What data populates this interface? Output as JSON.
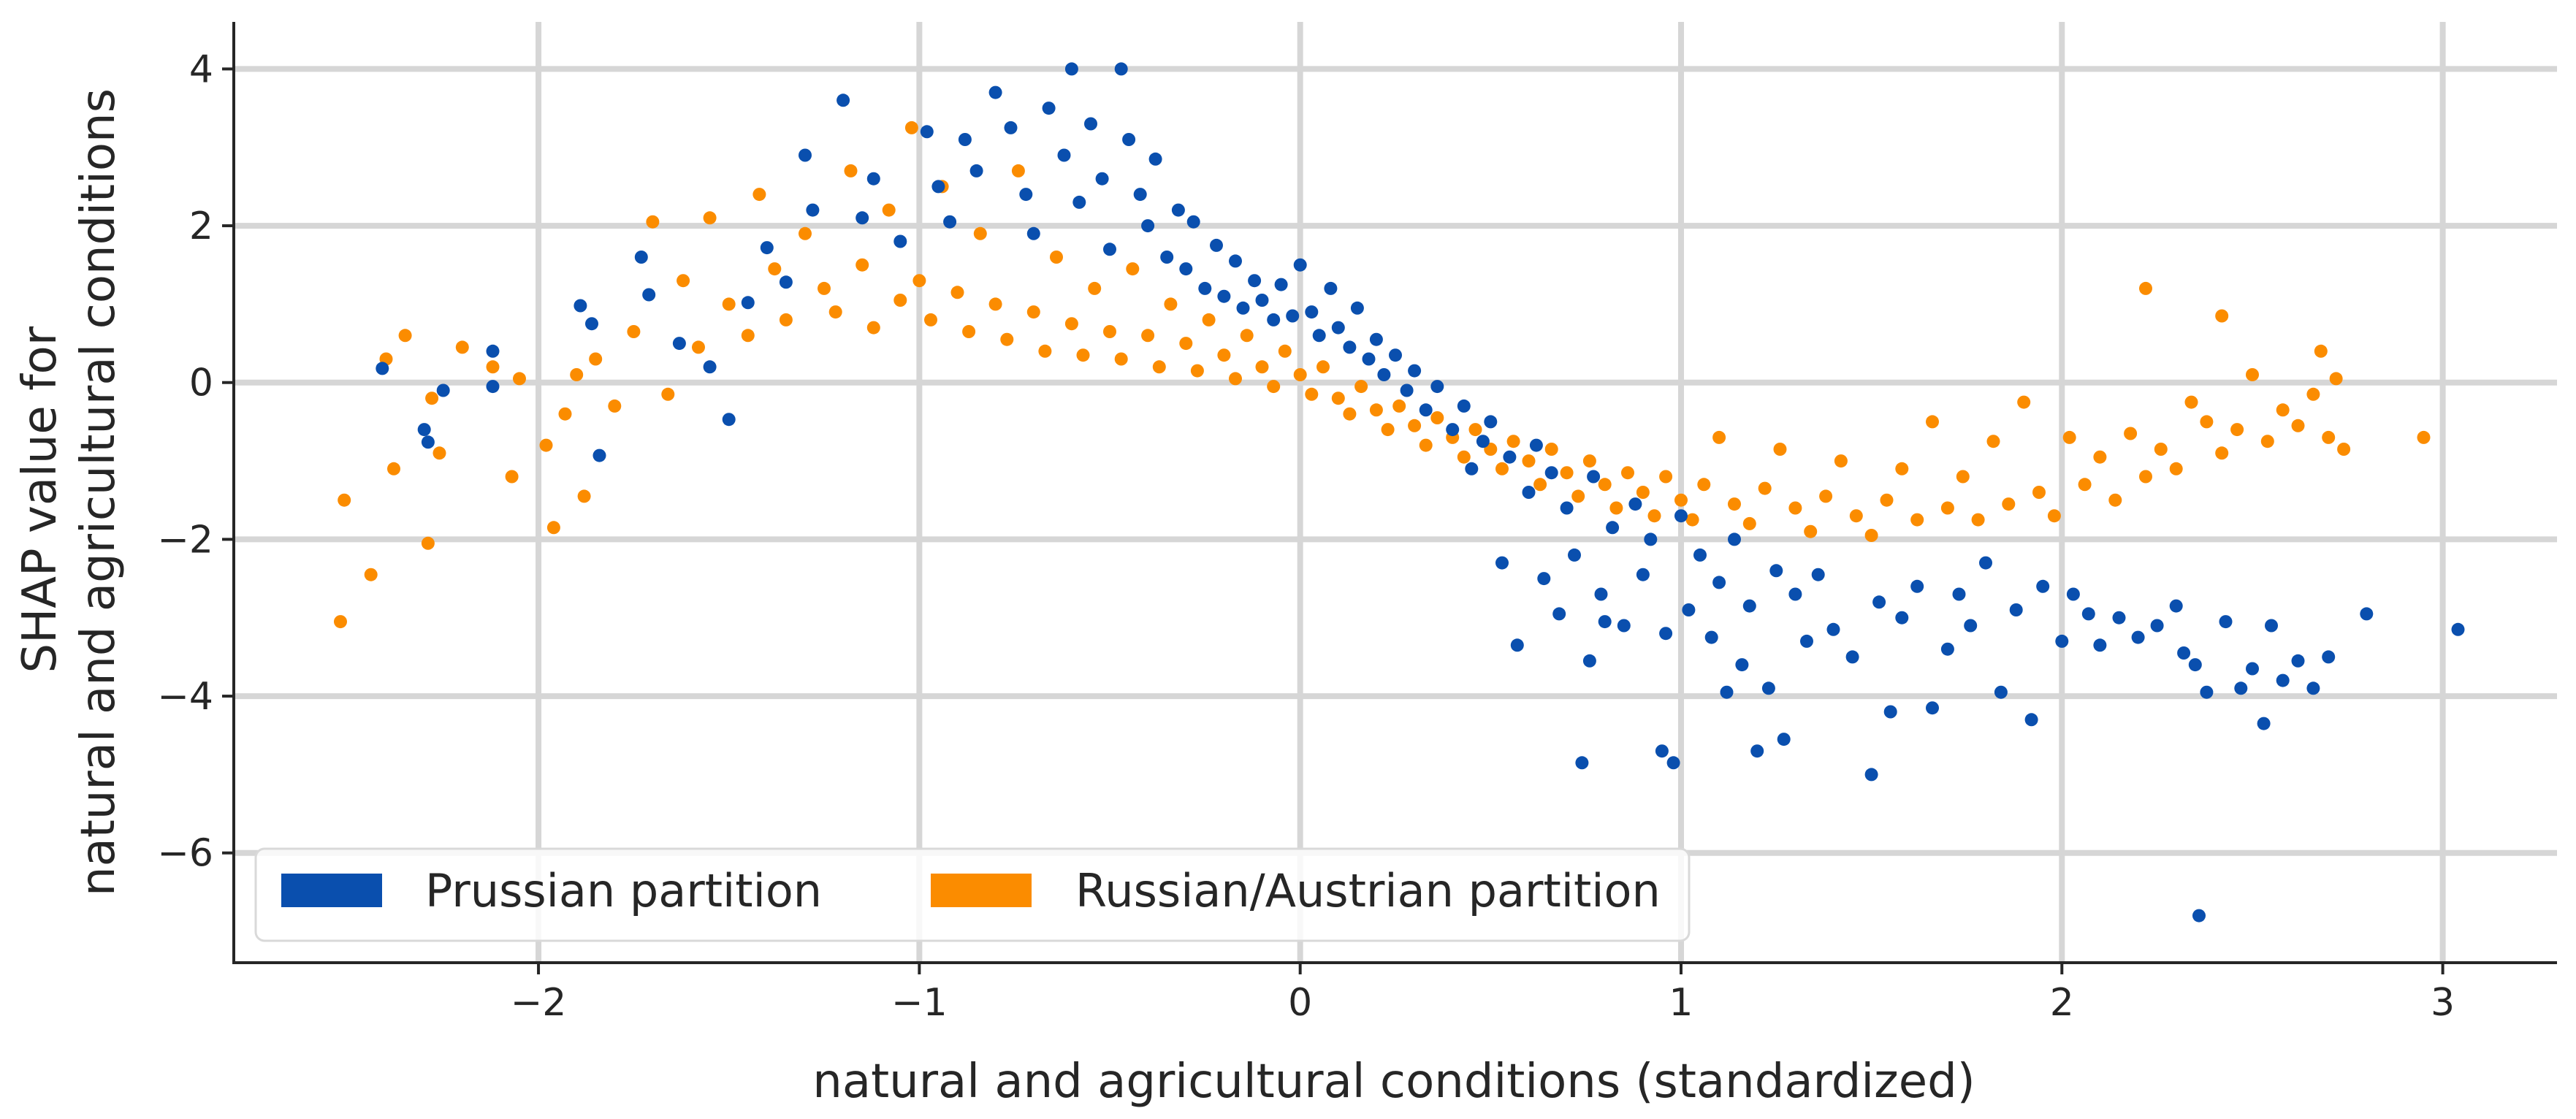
{
  "chart_data": {
    "type": "scatter",
    "title": "",
    "xlabel": "natural and agricultural conditions (standardized)",
    "ylabel_lines": [
      "SHAP value for",
      "natural and agricultural conditions"
    ],
    "xlim": [
      -2.8,
      3.3
    ],
    "ylim": [
      -7.4,
      4.6
    ],
    "xticks": [
      -2,
      -1,
      0,
      1,
      2,
      3
    ],
    "yticks": [
      -6,
      -4,
      -2,
      0,
      2,
      4
    ],
    "xtick_labels": [
      "−2",
      "−1",
      "0",
      "1",
      "2",
      "3"
    ],
    "ytick_labels": [
      "−6",
      "−4",
      "−2",
      "0",
      "2",
      "4"
    ],
    "grid": true,
    "legend_position": "bottom-left",
    "series": [
      {
        "name": "Prussian partition",
        "color": "#0a4fae",
        "points": [
          [
            -2.41,
            0.18
          ],
          [
            -2.3,
            -0.6
          ],
          [
            -2.29,
            -0.76
          ],
          [
            -2.25,
            -0.1
          ],
          [
            -2.12,
            0.4
          ],
          [
            -2.12,
            -0.05
          ],
          [
            -1.89,
            0.98
          ],
          [
            -1.86,
            0.75
          ],
          [
            -1.84,
            -0.93
          ],
          [
            -1.73,
            1.6
          ],
          [
            -1.71,
            1.12
          ],
          [
            -1.63,
            0.5
          ],
          [
            -1.55,
            0.2
          ],
          [
            -1.5,
            -0.47
          ],
          [
            -1.45,
            1.02
          ],
          [
            -1.4,
            1.72
          ],
          [
            -1.35,
            1.28
          ],
          [
            -1.3,
            2.9
          ],
          [
            -1.28,
            2.2
          ],
          [
            -1.2,
            3.6
          ],
          [
            -1.15,
            2.1
          ],
          [
            -1.12,
            2.6
          ],
          [
            -1.05,
            1.8
          ],
          [
            -0.98,
            3.2
          ],
          [
            -0.95,
            2.5
          ],
          [
            -0.92,
            2.05
          ],
          [
            -0.88,
            3.1
          ],
          [
            -0.85,
            2.7
          ],
          [
            -0.8,
            3.7
          ],
          [
            -0.76,
            3.25
          ],
          [
            -0.72,
            2.4
          ],
          [
            -0.7,
            1.9
          ],
          [
            -0.66,
            3.5
          ],
          [
            -0.62,
            2.9
          ],
          [
            -0.6,
            4.0
          ],
          [
            -0.58,
            2.3
          ],
          [
            -0.55,
            3.3
          ],
          [
            -0.52,
            2.6
          ],
          [
            -0.5,
            1.7
          ],
          [
            -0.47,
            4.0
          ],
          [
            -0.45,
            3.1
          ],
          [
            -0.42,
            2.4
          ],
          [
            -0.4,
            2.0
          ],
          [
            -0.38,
            2.85
          ],
          [
            -0.35,
            1.6
          ],
          [
            -0.32,
            2.2
          ],
          [
            -0.3,
            1.45
          ],
          [
            -0.28,
            2.05
          ],
          [
            -0.25,
            1.2
          ],
          [
            -0.22,
            1.75
          ],
          [
            -0.2,
            1.1
          ],
          [
            -0.17,
            1.55
          ],
          [
            -0.15,
            0.95
          ],
          [
            -0.12,
            1.3
          ],
          [
            -0.1,
            1.05
          ],
          [
            -0.07,
            0.8
          ],
          [
            -0.05,
            1.25
          ],
          [
            -0.02,
            0.85
          ],
          [
            0.0,
            1.5
          ],
          [
            0.03,
            0.9
          ],
          [
            0.05,
            0.6
          ],
          [
            0.08,
            1.2
          ],
          [
            0.1,
            0.7
          ],
          [
            0.13,
            0.45
          ],
          [
            0.15,
            0.95
          ],
          [
            0.18,
            0.3
          ],
          [
            0.2,
            0.55
          ],
          [
            0.22,
            0.1
          ],
          [
            0.25,
            0.35
          ],
          [
            0.28,
            -0.1
          ],
          [
            0.3,
            0.15
          ],
          [
            0.33,
            -0.35
          ],
          [
            0.36,
            -0.05
          ],
          [
            0.4,
            -0.6
          ],
          [
            0.43,
            -0.3
          ],
          [
            0.45,
            -1.1
          ],
          [
            0.48,
            -0.75
          ],
          [
            0.5,
            -0.5
          ],
          [
            0.53,
            -2.3
          ],
          [
            0.55,
            -0.95
          ],
          [
            0.57,
            -3.35
          ],
          [
            0.6,
            -1.4
          ],
          [
            0.62,
            -0.8
          ],
          [
            0.64,
            -2.5
          ],
          [
            0.66,
            -1.15
          ],
          [
            0.68,
            -2.95
          ],
          [
            0.7,
            -1.6
          ],
          [
            0.72,
            -2.2
          ],
          [
            0.74,
            -4.85
          ],
          [
            0.76,
            -3.55
          ],
          [
            0.77,
            -1.2
          ],
          [
            0.79,
            -2.7
          ],
          [
            0.8,
            -3.05
          ],
          [
            0.82,
            -1.85
          ],
          [
            0.85,
            -3.1
          ],
          [
            0.88,
            -1.55
          ],
          [
            0.9,
            -2.45
          ],
          [
            0.92,
            -2.0
          ],
          [
            0.95,
            -4.7
          ],
          [
            0.96,
            -3.2
          ],
          [
            0.98,
            -4.85
          ],
          [
            1.0,
            -1.7
          ],
          [
            1.02,
            -2.9
          ],
          [
            1.05,
            -2.2
          ],
          [
            1.08,
            -3.25
          ],
          [
            1.1,
            -2.55
          ],
          [
            1.12,
            -3.95
          ],
          [
            1.14,
            -2.0
          ],
          [
            1.16,
            -3.6
          ],
          [
            1.18,
            -2.85
          ],
          [
            1.2,
            -4.7
          ],
          [
            1.23,
            -3.9
          ],
          [
            1.25,
            -2.4
          ],
          [
            1.27,
            -4.55
          ],
          [
            1.3,
            -2.7
          ],
          [
            1.33,
            -3.3
          ],
          [
            1.36,
            -2.45
          ],
          [
            1.4,
            -3.15
          ],
          [
            1.45,
            -3.5
          ],
          [
            1.5,
            -5.0
          ],
          [
            1.52,
            -2.8
          ],
          [
            1.55,
            -4.2
          ],
          [
            1.58,
            -3.0
          ],
          [
            1.62,
            -2.6
          ],
          [
            1.66,
            -4.15
          ],
          [
            1.7,
            -3.4
          ],
          [
            1.73,
            -2.7
          ],
          [
            1.76,
            -3.1
          ],
          [
            1.8,
            -2.3
          ],
          [
            1.84,
            -3.95
          ],
          [
            1.88,
            -2.9
          ],
          [
            1.92,
            -4.3
          ],
          [
            1.95,
            -2.6
          ],
          [
            2.0,
            -3.3
          ],
          [
            2.03,
            -2.7
          ],
          [
            2.07,
            -2.95
          ],
          [
            2.1,
            -3.35
          ],
          [
            2.15,
            -3.0
          ],
          [
            2.2,
            -3.25
          ],
          [
            2.25,
            -3.1
          ],
          [
            2.3,
            -2.85
          ],
          [
            2.32,
            -3.45
          ],
          [
            2.35,
            -3.6
          ],
          [
            2.38,
            -3.95
          ],
          [
            2.36,
            -6.8
          ],
          [
            2.43,
            -3.05
          ],
          [
            2.47,
            -3.9
          ],
          [
            2.5,
            -3.65
          ],
          [
            2.53,
            -4.35
          ],
          [
            2.55,
            -3.1
          ],
          [
            2.58,
            -3.8
          ],
          [
            2.62,
            -3.55
          ],
          [
            2.66,
            -3.9
          ],
          [
            2.7,
            -3.5
          ],
          [
            2.8,
            -2.95
          ],
          [
            3.04,
            -3.15
          ]
        ]
      },
      {
        "name": "Russian/Austrian partition",
        "color": "#fb8c00",
        "points": [
          [
            -2.52,
            -3.05
          ],
          [
            -2.51,
            -1.5
          ],
          [
            -2.44,
            -2.45
          ],
          [
            -2.4,
            0.3
          ],
          [
            -2.38,
            -1.1
          ],
          [
            -2.35,
            0.6
          ],
          [
            -2.29,
            -2.05
          ],
          [
            -2.28,
            -0.2
          ],
          [
            -2.26,
            -0.9
          ],
          [
            -2.2,
            0.45
          ],
          [
            -2.12,
            0.2
          ],
          [
            -2.07,
            -1.2
          ],
          [
            -2.05,
            0.05
          ],
          [
            -1.98,
            -0.8
          ],
          [
            -1.96,
            -1.85
          ],
          [
            -1.93,
            -0.4
          ],
          [
            -1.9,
            0.1
          ],
          [
            -1.88,
            -1.45
          ],
          [
            -1.85,
            0.3
          ],
          [
            -1.8,
            -0.3
          ],
          [
            -1.75,
            0.65
          ],
          [
            -1.7,
            2.05
          ],
          [
            -1.66,
            -0.15
          ],
          [
            -1.62,
            1.3
          ],
          [
            -1.58,
            0.45
          ],
          [
            -1.55,
            2.1
          ],
          [
            -1.5,
            1.0
          ],
          [
            -1.45,
            0.6
          ],
          [
            -1.42,
            2.4
          ],
          [
            -1.38,
            1.45
          ],
          [
            -1.35,
            0.8
          ],
          [
            -1.3,
            1.9
          ],
          [
            -1.25,
            1.2
          ],
          [
            -1.22,
            0.9
          ],
          [
            -1.18,
            2.7
          ],
          [
            -1.15,
            1.5
          ],
          [
            -1.12,
            0.7
          ],
          [
            -1.08,
            2.2
          ],
          [
            -1.05,
            1.05
          ],
          [
            -1.02,
            3.25
          ],
          [
            -1.0,
            1.3
          ],
          [
            -0.97,
            0.8
          ],
          [
            -0.94,
            2.5
          ],
          [
            -0.9,
            1.15
          ],
          [
            -0.87,
            0.65
          ],
          [
            -0.84,
            1.9
          ],
          [
            -0.8,
            1.0
          ],
          [
            -0.77,
            0.55
          ],
          [
            -0.74,
            2.7
          ],
          [
            -0.7,
            0.9
          ],
          [
            -0.67,
            0.4
          ],
          [
            -0.64,
            1.6
          ],
          [
            -0.6,
            0.75
          ],
          [
            -0.57,
            0.35
          ],
          [
            -0.54,
            1.2
          ],
          [
            -0.5,
            0.65
          ],
          [
            -0.47,
            0.3
          ],
          [
            -0.44,
            1.45
          ],
          [
            -0.4,
            0.6
          ],
          [
            -0.37,
            0.2
          ],
          [
            -0.34,
            1.0
          ],
          [
            -0.3,
            0.5
          ],
          [
            -0.27,
            0.15
          ],
          [
            -0.24,
            0.8
          ],
          [
            -0.2,
            0.35
          ],
          [
            -0.17,
            0.05
          ],
          [
            -0.14,
            0.6
          ],
          [
            -0.1,
            0.2
          ],
          [
            -0.07,
            -0.05
          ],
          [
            -0.04,
            0.4
          ],
          [
            0.0,
            0.1
          ],
          [
            0.03,
            -0.15
          ],
          [
            0.06,
            0.2
          ],
          [
            0.1,
            -0.2
          ],
          [
            0.13,
            -0.4
          ],
          [
            0.16,
            -0.05
          ],
          [
            0.2,
            -0.35
          ],
          [
            0.23,
            -0.6
          ],
          [
            0.26,
            -0.3
          ],
          [
            0.3,
            -0.55
          ],
          [
            0.33,
            -0.8
          ],
          [
            0.36,
            -0.45
          ],
          [
            0.4,
            -0.7
          ],
          [
            0.43,
            -0.95
          ],
          [
            0.46,
            -0.6
          ],
          [
            0.5,
            -0.85
          ],
          [
            0.53,
            -1.1
          ],
          [
            0.56,
            -0.75
          ],
          [
            0.6,
            -1.0
          ],
          [
            0.63,
            -1.3
          ],
          [
            0.66,
            -0.85
          ],
          [
            0.7,
            -1.15
          ],
          [
            0.73,
            -1.45
          ],
          [
            0.76,
            -1.0
          ],
          [
            0.8,
            -1.3
          ],
          [
            0.83,
            -1.6
          ],
          [
            0.86,
            -1.15
          ],
          [
            0.9,
            -1.4
          ],
          [
            0.93,
            -1.7
          ],
          [
            0.96,
            -1.2
          ],
          [
            1.0,
            -1.5
          ],
          [
            1.03,
            -1.75
          ],
          [
            1.06,
            -1.3
          ],
          [
            1.1,
            -0.7
          ],
          [
            1.14,
            -1.55
          ],
          [
            1.18,
            -1.8
          ],
          [
            1.22,
            -1.35
          ],
          [
            1.26,
            -0.85
          ],
          [
            1.3,
            -1.6
          ],
          [
            1.34,
            -1.9
          ],
          [
            1.38,
            -1.45
          ],
          [
            1.42,
            -1.0
          ],
          [
            1.46,
            -1.7
          ],
          [
            1.5,
            -1.95
          ],
          [
            1.54,
            -1.5
          ],
          [
            1.58,
            -1.1
          ],
          [
            1.62,
            -1.75
          ],
          [
            1.66,
            -0.5
          ],
          [
            1.7,
            -1.6
          ],
          [
            1.74,
            -1.2
          ],
          [
            1.78,
            -1.75
          ],
          [
            1.82,
            -0.75
          ],
          [
            1.86,
            -1.55
          ],
          [
            1.9,
            -0.25
          ],
          [
            1.94,
            -1.4
          ],
          [
            1.98,
            -1.7
          ],
          [
            2.02,
            -0.7
          ],
          [
            2.06,
            -1.3
          ],
          [
            2.1,
            -0.95
          ],
          [
            2.14,
            -1.5
          ],
          [
            2.18,
            -0.65
          ],
          [
            2.22,
            1.2
          ],
          [
            2.22,
            -1.2
          ],
          [
            2.26,
            -0.85
          ],
          [
            2.3,
            -1.1
          ],
          [
            2.34,
            -0.25
          ],
          [
            2.38,
            -0.5
          ],
          [
            2.42,
            0.85
          ],
          [
            2.42,
            -0.9
          ],
          [
            2.46,
            -0.6
          ],
          [
            2.5,
            0.1
          ],
          [
            2.54,
            -0.75
          ],
          [
            2.58,
            -0.35
          ],
          [
            2.62,
            -0.55
          ],
          [
            2.66,
            -0.15
          ],
          [
            2.68,
            0.4
          ],
          [
            2.7,
            -0.7
          ],
          [
            2.72,
            0.05
          ],
          [
            2.74,
            -0.85
          ],
          [
            2.95,
            -0.7
          ]
        ]
      }
    ]
  }
}
